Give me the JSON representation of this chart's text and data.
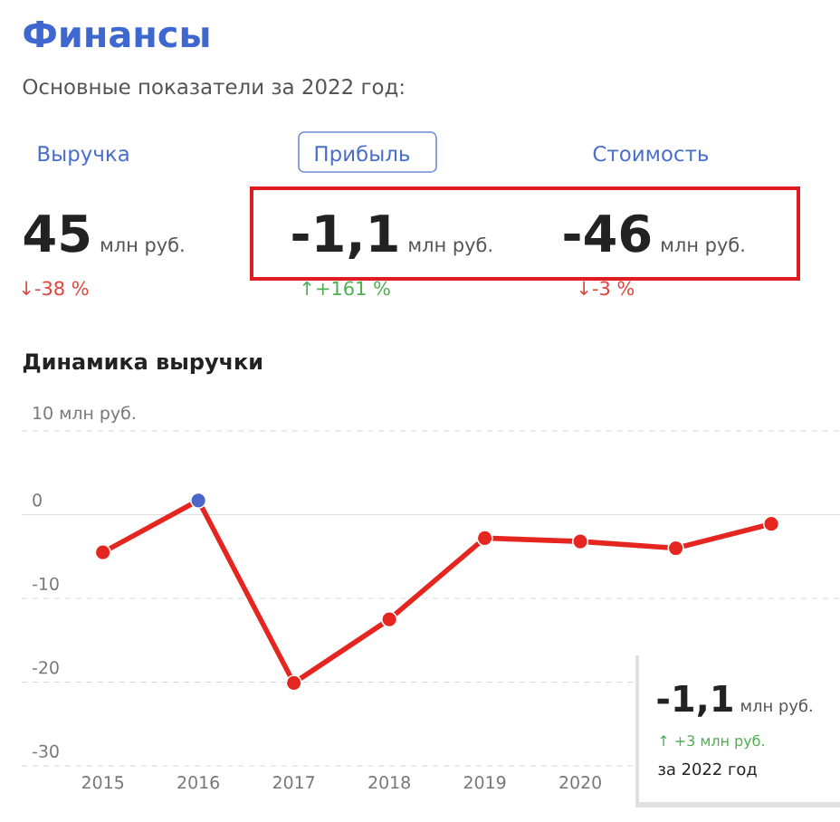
{
  "chart_data": [
    {
      "type": "other",
      "title": "Финансы",
      "subtitle": "Основные показатели за 2022 год:",
      "annotations": [
        "Выручка",
        "Прибыль",
        "Стоимость",
        "45",
        "млн руб.",
        "-1,1",
        "млн руб.",
        "-46",
        "млн руб.",
        "↓-38 %",
        "↑+161 %",
        "↓-3 %"
      ]
    },
    {
      "type": "line",
      "title": "Динамика выручки",
      "categories": [
        "2015",
        "2016",
        "2017",
        "2018",
        "2019",
        "2020",
        null,
        null
      ],
      "series": [
        {
          "color": "#e52620",
          "values": [
            -4.5,
            1.7,
            -20.1,
            -12.5,
            -2.8,
            -3.2,
            -4.0,
            -1.1
          ],
          "colors": [
            "#e52620",
            "#4a66c8",
            "#e52620",
            "#e52620",
            "#e52620",
            "#e52620",
            "#e52620",
            "#e52620"
          ]
        }
      ],
      "ylim": [
        -30,
        10
      ],
      "yticks": [
        {
          "value": 10,
          "label": "10 млн руб."
        },
        0,
        -10,
        -20,
        -30
      ],
      "grid": "y",
      "marker": "circle",
      "annotations": [
        "-1,1",
        "млн руб.",
        "↑ +3 млн руб.",
        "за 2022 год"
      ]
    }
  ]
}
